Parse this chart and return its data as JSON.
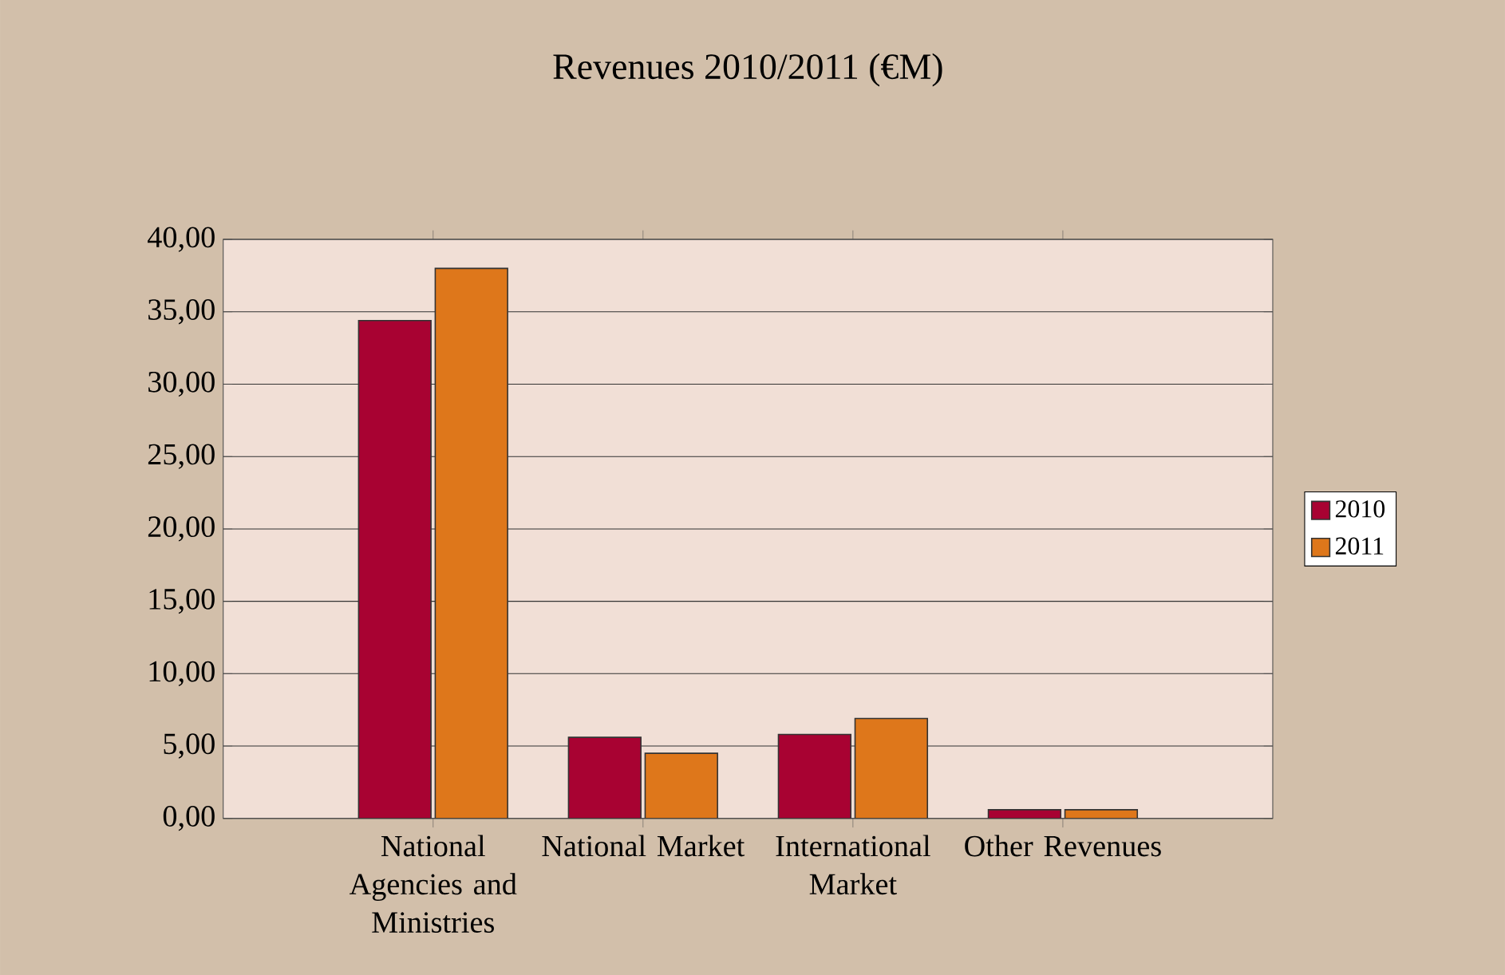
{
  "chart_data": {
    "type": "bar",
    "title": "Revenues 2010/2011 (€M)",
    "categories": [
      "National Agencies and Ministries",
      "National Market",
      "International Market",
      "Other Revenues"
    ],
    "series": [
      {
        "name": "2010",
        "color": "#a80232",
        "values": [
          34.4,
          5.6,
          5.8,
          0.6
        ]
      },
      {
        "name": "2011",
        "color": "#de771b",
        "values": [
          38.0,
          4.5,
          6.9,
          0.6
        ]
      }
    ],
    "ylim": [
      0,
      40
    ],
    "yticks": [
      {
        "value": 0,
        "label": "0,00"
      },
      {
        "value": 5,
        "label": "5,00"
      },
      {
        "value": 10,
        "label": "10,00"
      },
      {
        "value": 15,
        "label": "15,00"
      },
      {
        "value": 20,
        "label": "20,00"
      },
      {
        "value": 25,
        "label": "25,00"
      },
      {
        "value": 30,
        "label": "30,00"
      },
      {
        "value": 35,
        "label": "35,00"
      },
      {
        "value": 40,
        "label": "40,00"
      }
    ],
    "grid": "y",
    "legend": "right"
  }
}
